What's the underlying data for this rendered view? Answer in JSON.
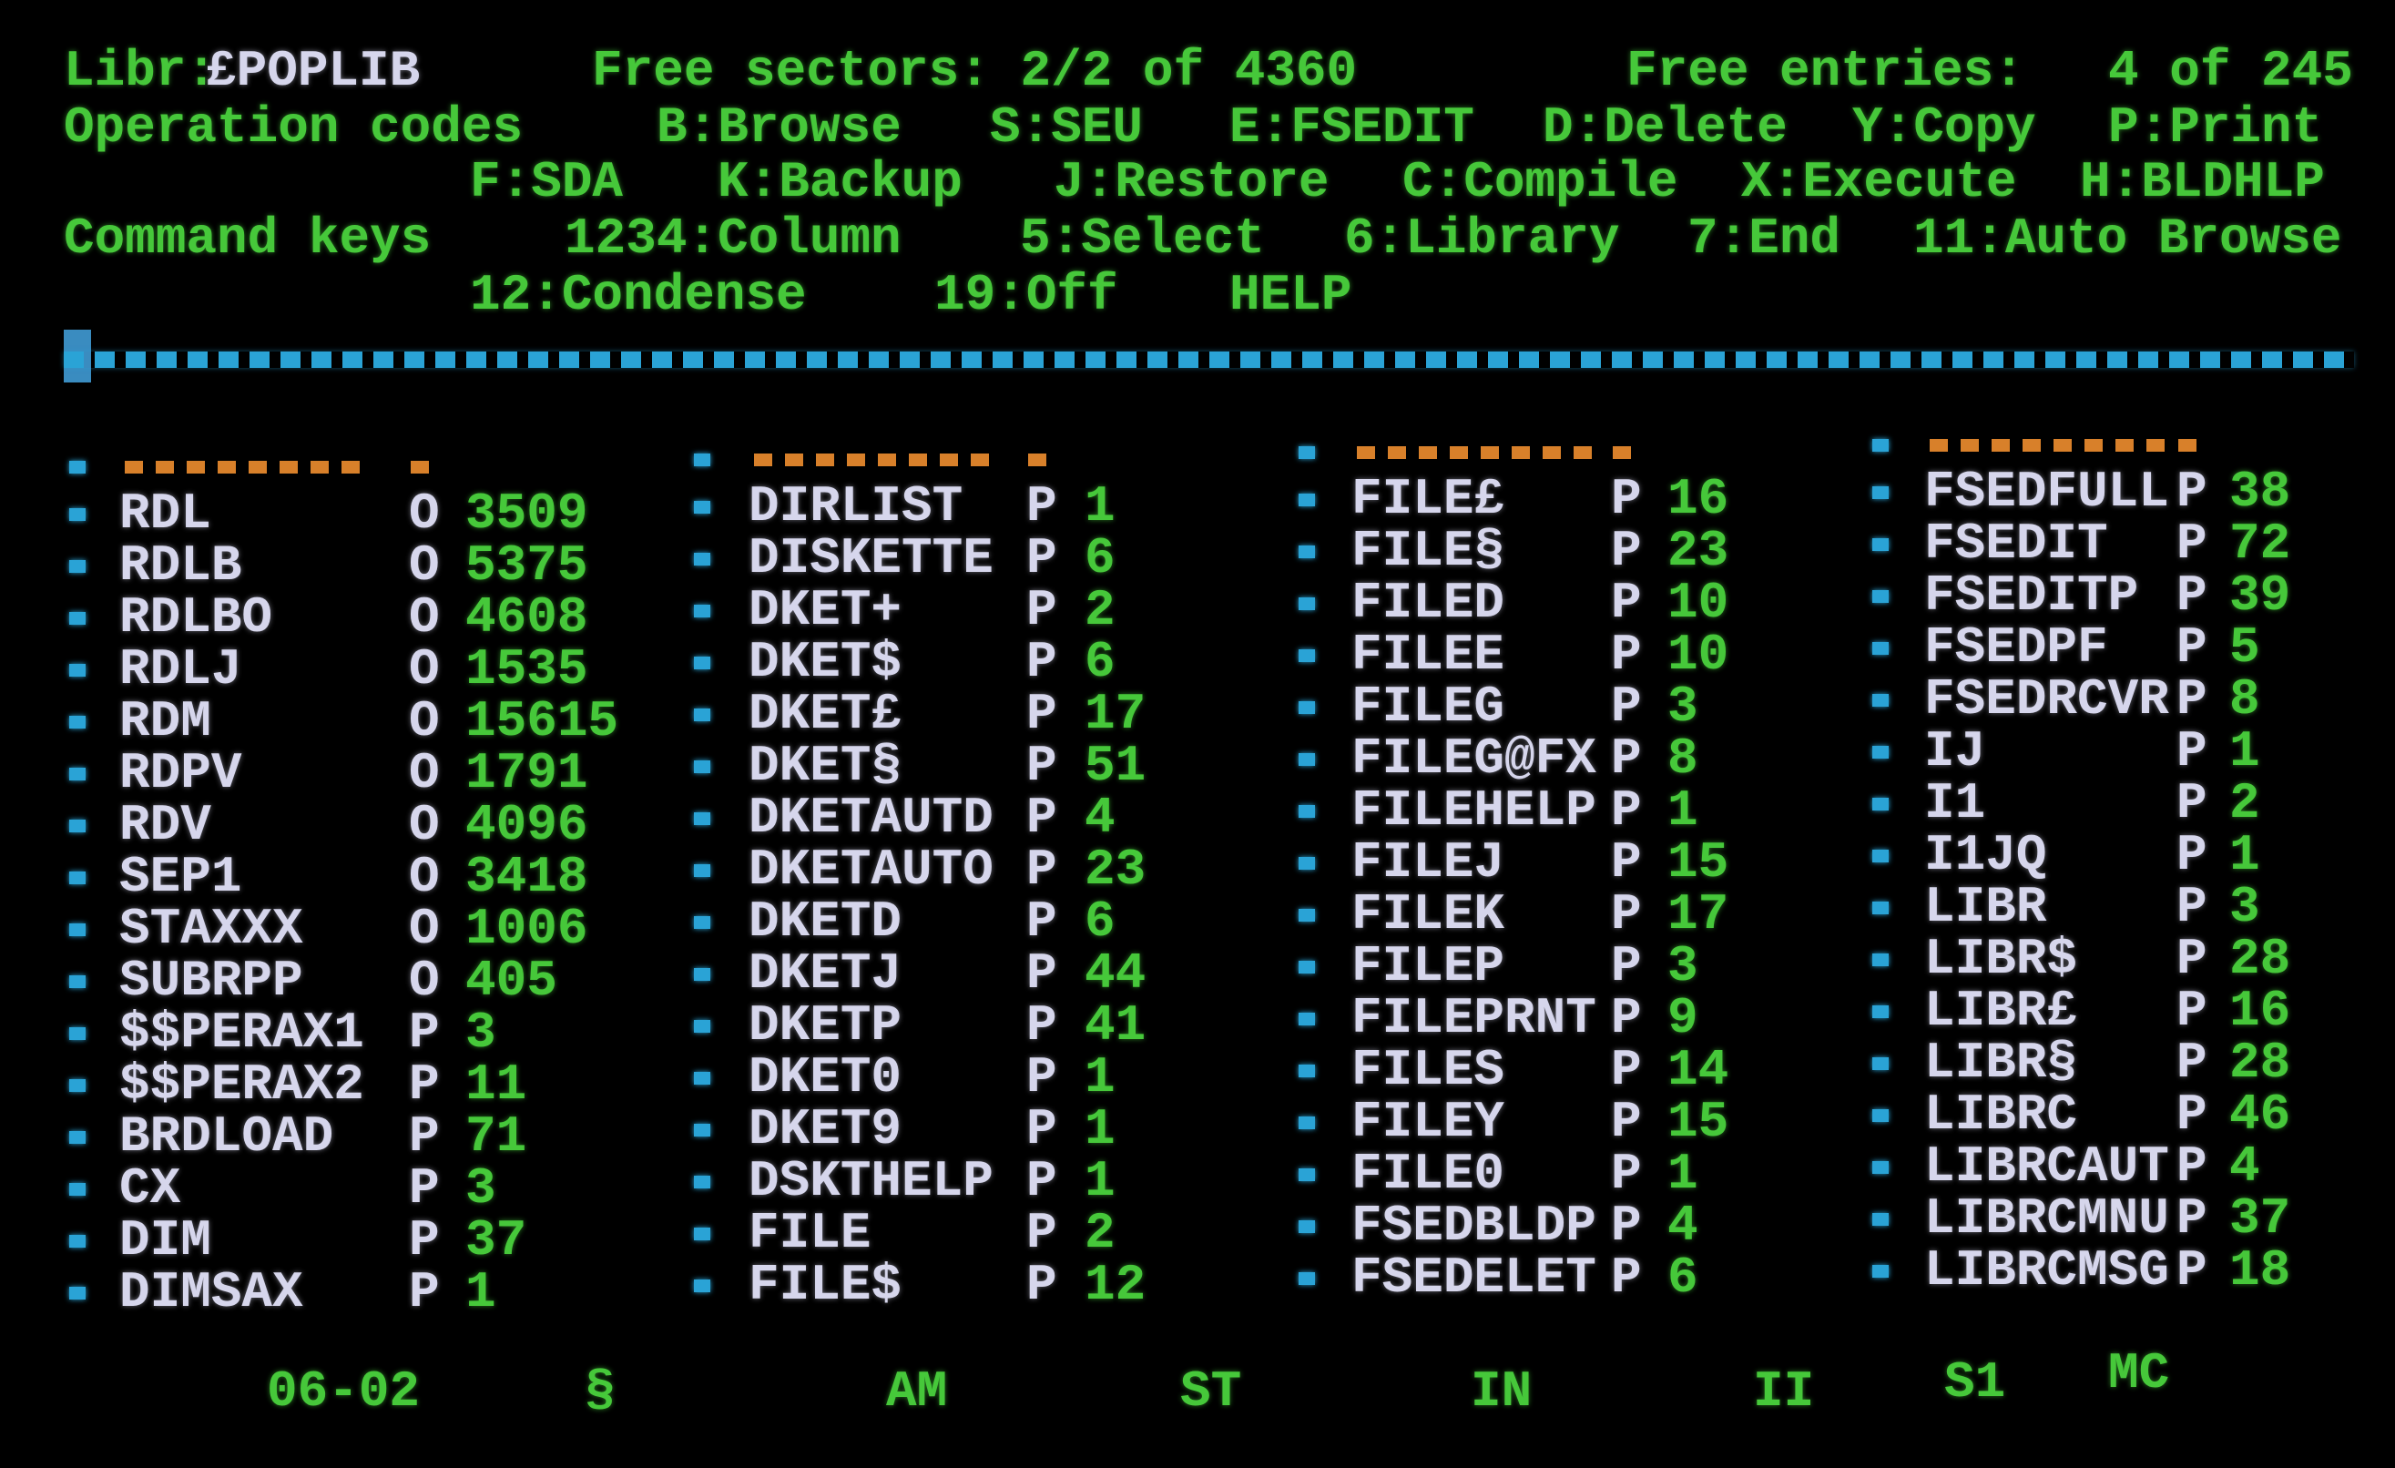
{
  "header": {
    "libr_label": "Libr:",
    "libr_name": "£POPLIB",
    "free_sectors": "Free sectors: 2/2 of 4360",
    "free_entries_label": "Free entries:",
    "free_entries_value": "4 of 245",
    "operation_codes_label": "Operation codes",
    "operation_codes": [
      "B:Browse",
      "S:SEU",
      "E:FSEDIT",
      "D:Delete",
      "Y:Copy",
      "P:Print",
      "F:SDA",
      "K:Backup",
      "J:Restore",
      "C:Compile",
      "X:Execute",
      "H:BLDHLP"
    ],
    "command_keys_label": "Command keys",
    "command_keys": [
      "1234:Column",
      "5:Select",
      "6:Library",
      "7:End",
      "11:Auto Browse",
      "12:Condense",
      "19:Off",
      "HELP"
    ]
  },
  "colors": {
    "text_green": "#46c83a",
    "name_white": "#d6d6ec",
    "bullet_blue": "#2aa3d6",
    "header_orange": "#d8802a"
  },
  "columns": [
    {
      "entries": [
        [
          "RDL",
          "O",
          "3509"
        ],
        [
          "RDLB",
          "O",
          "5375"
        ],
        [
          "RDLBO",
          "O",
          "4608"
        ],
        [
          "RDLJ",
          "O",
          "1535"
        ],
        [
          "RDM",
          "O",
          "15615"
        ],
        [
          "RDPV",
          "O",
          "1791"
        ],
        [
          "RDV",
          "O",
          "4096"
        ],
        [
          "SEP1",
          "O",
          "3418"
        ],
        [
          "STAXXX",
          "O",
          "1006"
        ],
        [
          "SUBRPP",
          "O",
          "405"
        ],
        [
          "$$PERAX1",
          "P",
          "3"
        ],
        [
          "$$PERAX2",
          "P",
          "11"
        ],
        [
          "BRDLOAD",
          "P",
          "71"
        ],
        [
          "CX",
          "P",
          "3"
        ],
        [
          "DIM",
          "P",
          "37"
        ],
        [
          "DIMSAX",
          "P",
          "1"
        ]
      ]
    },
    {
      "entries": [
        [
          "DIRLIST",
          "P",
          "1"
        ],
        [
          "DISKETTE",
          "P",
          "6"
        ],
        [
          "DKET+",
          "P",
          "2"
        ],
        [
          "DKET$",
          "P",
          "6"
        ],
        [
          "DKET£",
          "P",
          "17"
        ],
        [
          "DKET§",
          "P",
          "51"
        ],
        [
          "DKETAUTD",
          "P",
          "4"
        ],
        [
          "DKETAUTO",
          "P",
          "23"
        ],
        [
          "DKETD",
          "P",
          "6"
        ],
        [
          "DKETJ",
          "P",
          "44"
        ],
        [
          "DKETP",
          "P",
          "41"
        ],
        [
          "DKET0",
          "P",
          "1"
        ],
        [
          "DKET9",
          "P",
          "1"
        ],
        [
          "DSKTHELP",
          "P",
          "1"
        ],
        [
          "FILE",
          "P",
          "2"
        ],
        [
          "FILE$",
          "P",
          "12"
        ]
      ]
    },
    {
      "entries": [
        [
          "FILE£",
          "P",
          "16"
        ],
        [
          "FILE§",
          "P",
          "23"
        ],
        [
          "FILED",
          "P",
          "10"
        ],
        [
          "FILEE",
          "P",
          "10"
        ],
        [
          "FILEG",
          "P",
          "3"
        ],
        [
          "FILEG@FX",
          "P",
          "8"
        ],
        [
          "FILEHELP",
          "P",
          "1"
        ],
        [
          "FILEJ",
          "P",
          "15"
        ],
        [
          "FILEK",
          "P",
          "17"
        ],
        [
          "FILEP",
          "P",
          "3"
        ],
        [
          "FILEPRNT",
          "P",
          "9"
        ],
        [
          "FILES",
          "P",
          "14"
        ],
        [
          "FILEY",
          "P",
          "15"
        ],
        [
          "FILE0",
          "P",
          "1"
        ],
        [
          "FSEDBLDP",
          "P",
          "4"
        ],
        [
          "FSEDELET",
          "P",
          "6"
        ]
      ]
    },
    {
      "entries": [
        [
          "FSEDFULL",
          "P",
          "38"
        ],
        [
          "FSEDIT",
          "P",
          "72"
        ],
        [
          "FSEDITP",
          "P",
          "39"
        ],
        [
          "FSEDPF",
          "P",
          "5"
        ],
        [
          "FSEDRCVR",
          "P",
          "8"
        ],
        [
          "IJ",
          "P",
          "1"
        ],
        [
          "I1",
          "P",
          "2"
        ],
        [
          "I1JQ",
          "P",
          "1"
        ],
        [
          "LIBR",
          "P",
          "3"
        ],
        [
          "LIBR$",
          "P",
          "28"
        ],
        [
          "LIBR£",
          "P",
          "16"
        ],
        [
          "LIBR§",
          "P",
          "28"
        ],
        [
          "LIBRC",
          "P",
          "46"
        ],
        [
          "LIBRCAUT",
          "P",
          "4"
        ],
        [
          "LIBRCMNU",
          "P",
          "37"
        ],
        [
          "LIBRCMSG",
          "P",
          "18"
        ]
      ]
    }
  ],
  "status_line": [
    "06-02",
    "§",
    "AM",
    "ST",
    "IN",
    "II",
    "S1",
    "MC"
  ]
}
